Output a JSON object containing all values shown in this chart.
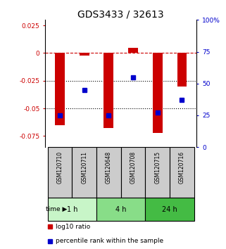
{
  "title": "GDS3433 / 32613",
  "samples": [
    "GSM120710",
    "GSM120711",
    "GSM120648",
    "GSM120708",
    "GSM120715",
    "GSM120716"
  ],
  "log10_ratio": [
    -0.065,
    -0.002,
    -0.068,
    0.005,
    -0.072,
    -0.03
  ],
  "percentile_rank": [
    25,
    45,
    25,
    55,
    27,
    37
  ],
  "time_groups": [
    {
      "label": "1 h",
      "start": 0,
      "end": 2,
      "color": "#c8f5c8"
    },
    {
      "label": "4 h",
      "start": 2,
      "end": 4,
      "color": "#88dd88"
    },
    {
      "label": "24 h",
      "start": 4,
      "end": 6,
      "color": "#44bb44"
    }
  ],
  "ylim_left": [
    -0.085,
    0.03
  ],
  "ylim_right": [
    0,
    100
  ],
  "yticks_left": [
    0.025,
    0,
    -0.025,
    -0.05,
    -0.075
  ],
  "ytick_labels_left": [
    "0.025",
    "0",
    "-0.025",
    "-0.05",
    "-0.075"
  ],
  "yticks_right": [
    100,
    75,
    50,
    25,
    0
  ],
  "ytick_labels_right": [
    "100%",
    "75",
    "50",
    "25",
    "0"
  ],
  "bar_color": "#cc0000",
  "dot_color": "#0000cc",
  "hline_color": "#cc0000",
  "dotline_color": "#000000",
  "sample_box_color": "#cccccc",
  "sample_box_edge": "#000000",
  "title_fontsize": 10,
  "tick_fontsize": 6.5,
  "sample_fontsize": 5.5,
  "time_fontsize": 7,
  "legend_fontsize": 6.5,
  "bar_width": 0.4
}
